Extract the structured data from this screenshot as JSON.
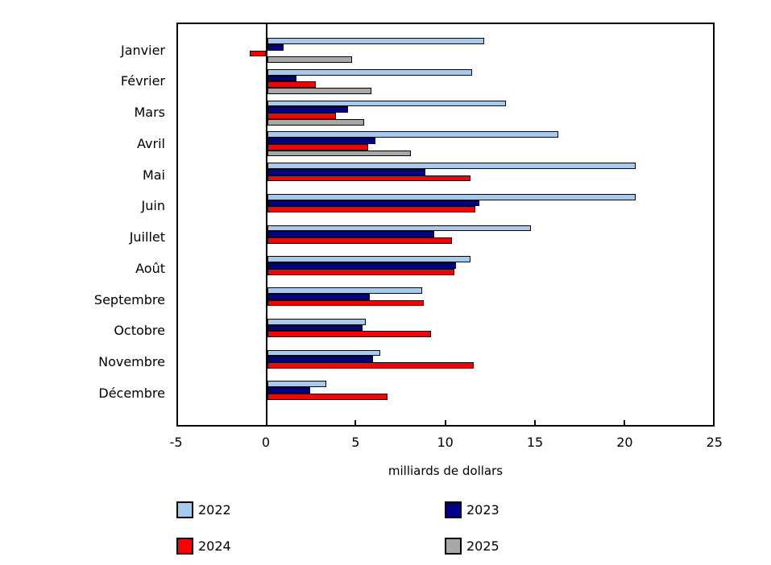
{
  "chart_data": {
    "type": "bar",
    "orientation": "horizontal",
    "title": "",
    "xlabel": "milliards de dollars",
    "ylabel": "",
    "xlim": [
      -5,
      25
    ],
    "xticks": [
      -5,
      0,
      5,
      10,
      15,
      20,
      25
    ],
    "grid": false,
    "legend_position": "bottom",
    "categories": [
      "Janvier",
      "Février",
      "Mars",
      "Avril",
      "Mai",
      "Juin",
      "Juillet",
      "Août",
      "Septembre",
      "Octobre",
      "Novembre",
      "Décembre"
    ],
    "series": [
      {
        "name": "2022",
        "color": "#A3CBF0",
        "values": [
          12.1,
          11.4,
          13.3,
          16.2,
          20.5,
          20.5,
          14.7,
          11.3,
          8.6,
          5.5,
          6.3,
          3.3
        ]
      },
      {
        "name": "2023",
        "color": "#00008B",
        "values": [
          0.9,
          1.6,
          4.5,
          6.0,
          8.8,
          11.8,
          9.3,
          10.5,
          5.7,
          5.3,
          5.9,
          2.4
        ]
      },
      {
        "name": "2024",
        "color": "#FA0000",
        "values": [
          -0.9,
          2.7,
          3.8,
          5.6,
          11.3,
          11.6,
          10.3,
          10.4,
          8.7,
          9.1,
          11.5,
          6.7
        ]
      },
      {
        "name": "2025",
        "color": "#A8A8A8",
        "values": [
          4.7,
          5.8,
          5.4,
          8.0,
          null,
          null,
          null,
          null,
          null,
          null,
          null,
          null
        ]
      }
    ]
  }
}
